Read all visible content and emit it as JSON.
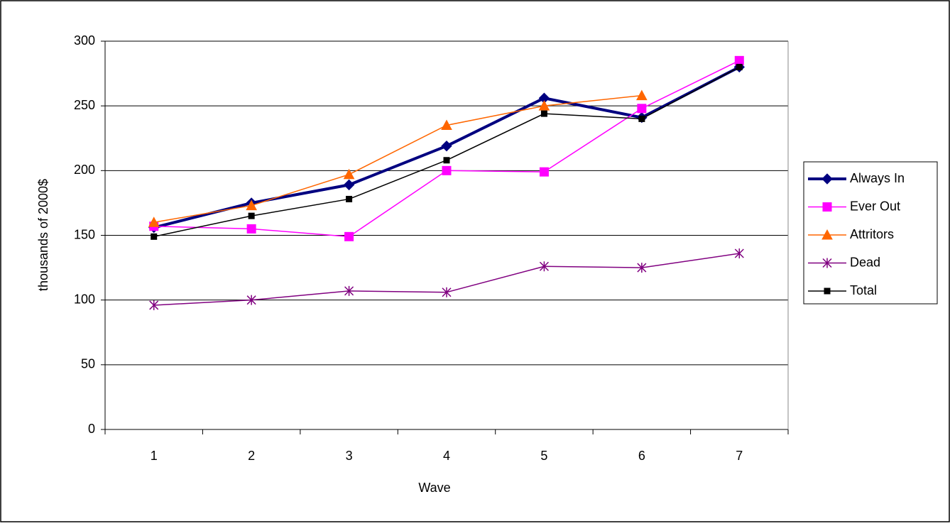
{
  "chart_data": {
    "type": "line",
    "x_label": "Wave",
    "y_label": "thousands of 2000$",
    "categories": [
      "1",
      "2",
      "3",
      "4",
      "5",
      "6",
      "7"
    ],
    "series": [
      {
        "name": "Always In",
        "color": "#000080",
        "marker": "diamond",
        "line_width": 4,
        "values": [
          156,
          175,
          189,
          219,
          256,
          241,
          280
        ]
      },
      {
        "name": "Ever Out",
        "color": "#FF00FF",
        "marker": "square",
        "line_width": 1.5,
        "values": [
          157,
          155,
          149,
          200,
          199,
          248,
          285
        ]
      },
      {
        "name": "Attritors",
        "color": "#FF6600",
        "marker": "triangle",
        "line_width": 1.5,
        "values": [
          160,
          173,
          197,
          235,
          250,
          258,
          null
        ]
      },
      {
        "name": "Dead",
        "color": "#800080",
        "marker": "asterisk",
        "line_width": 1.5,
        "values": [
          96,
          100,
          107,
          106,
          126,
          125,
          136
        ]
      },
      {
        "name": "Total",
        "color": "#000000",
        "marker": "small-square",
        "line_width": 1.5,
        "values": [
          149,
          165,
          178,
          208,
          244,
          240,
          280
        ]
      }
    ],
    "ylim": [
      0,
      300
    ],
    "yticks": [
      0,
      50,
      100,
      150,
      200,
      250,
      300
    ],
    "grid": true,
    "legend": "right"
  }
}
